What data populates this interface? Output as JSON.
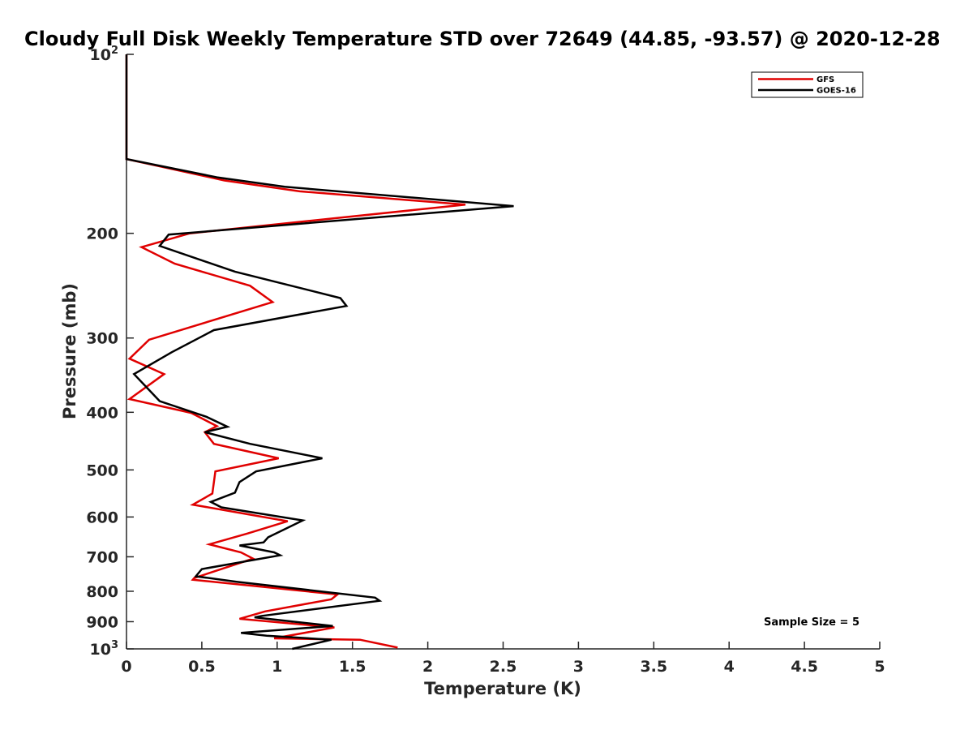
{
  "chart_data": {
    "type": "line",
    "title": "Cloudy Full Disk Weekly Temperature STD over 72649 (44.85, -93.57) @ 2020-12-28",
    "xlabel": "Temperature (K)",
    "ylabel": "Pressure (mb)",
    "xlim": [
      0,
      5
    ],
    "ylim": [
      100,
      1000
    ],
    "y_scale": "log",
    "y_reversed": true,
    "x_ticks": [
      "0",
      "0.5",
      "1",
      "1.5",
      "2",
      "2.5",
      "3",
      "3.5",
      "4",
      "4.5",
      "5"
    ],
    "y_ticks": [
      {
        "value": 100,
        "base": "10",
        "exp": "2"
      },
      {
        "value": 200,
        "label": "200"
      },
      {
        "value": 300,
        "label": "300"
      },
      {
        "value": 400,
        "label": "400"
      },
      {
        "value": 500,
        "label": "500"
      },
      {
        "value": 600,
        "label": "600"
      },
      {
        "value": 700,
        "label": "700"
      },
      {
        "value": 800,
        "label": "800"
      },
      {
        "value": 900,
        "label": "900"
      },
      {
        "value": 1000,
        "base": "10",
        "exp": "3"
      }
    ],
    "grid": false,
    "legend_position": "top-right",
    "annotation": "Sample Size = 5",
    "series": [
      {
        "name": "GFS",
        "color": "#e00000",
        "x": [
          0,
          0,
          0.65,
          1.15,
          2.25,
          0.42,
          0.1,
          0.32,
          0.82,
          0.97,
          0.15,
          0.02,
          0.25,
          0.02,
          0.43,
          0.6,
          0.52,
          0.58,
          1.01,
          0.59,
          0.57,
          0.44,
          1.07,
          0.8,
          0.55,
          0.76,
          0.84,
          0.45,
          0.44,
          1.4,
          1.36,
          0.92,
          0.75,
          1.38,
          1.23,
          0.98,
          1.55,
          1.8
        ],
        "y": [
          100,
          150,
          163,
          170,
          179,
          200,
          211,
          225,
          245,
          261,
          302,
          325,
          345,
          380,
          401,
          422,
          432,
          452,
          478,
          503,
          548,
          572,
          610,
          640,
          667,
          688,
          705,
          760,
          765,
          810,
          825,
          865,
          890,
          920,
          935,
          960,
          965,
          995
        ]
      },
      {
        "name": "GOES-16",
        "color": "#000000",
        "x": [
          0,
          0,
          0.6,
          1.05,
          2.57,
          0.28,
          0.22,
          0.72,
          1.42,
          1.46,
          0.58,
          0.3,
          0.05,
          0.22,
          0.53,
          0.67,
          0.52,
          0.82,
          1.3,
          0.86,
          0.75,
          0.72,
          0.56,
          0.63,
          1.17,
          0.94,
          0.91,
          0.75,
          0.98,
          1.02,
          0.5,
          0.46,
          0.73,
          1.65,
          1.68,
          0.9,
          0.85,
          1.37,
          0.76,
          0.93,
          1.36,
          1.1
        ],
        "y": [
          100,
          150,
          161,
          167,
          180,
          201,
          210,
          232,
          257,
          265,
          291,
          317,
          345,
          383,
          407,
          423,
          432,
          452,
          478,
          503,
          524,
          546,
          566,
          578,
          608,
          649,
          662,
          670,
          688,
          696,
          734,
          755,
          771,
          820,
          830,
          880,
          885,
          915,
          940,
          950,
          965,
          1000
        ]
      }
    ]
  }
}
